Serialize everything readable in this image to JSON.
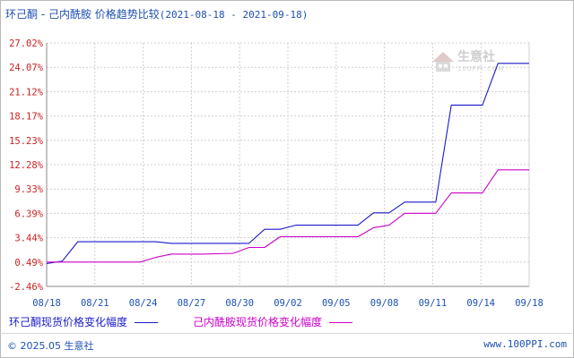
{
  "title": {
    "main": "环己酮 - 己内酰胺 价格趋势比较",
    "date_range": "(2021-08-18 - 2021-09-18)"
  },
  "watermark": {
    "brand": "生意社",
    "sub": "100PPI.COM"
  },
  "legend": [
    {
      "label": "环己酮现货价格变化幅度",
      "color": "#1a1acc"
    },
    {
      "label": "己内酰胺现货价格变化幅度",
      "color": "#cc00cc"
    }
  ],
  "footer": {
    "left": "© 2025.05 生意社",
    "right": "www.100PPI.com"
  },
  "chart_data": {
    "type": "line",
    "title": "环己酮 - 己内酰胺 价格趋势比较",
    "x_labels": [
      "08/18",
      "08/21",
      "08/24",
      "08/27",
      "08/30",
      "09/02",
      "09/05",
      "09/08",
      "09/11",
      "09/14",
      "09/18"
    ],
    "y_ticks": [
      "-2.46%",
      "0.49%",
      "3.44%",
      "6.39%",
      "9.33%",
      "12.28%",
      "15.23%",
      "18.17%",
      "21.12%",
      "24.07%",
      "27.02%"
    ],
    "ylim": [
      -2.46,
      27.02
    ],
    "xlim": [
      0,
      31
    ],
    "grid": true,
    "legend_position": "bottom",
    "series": [
      {
        "name": "环己酮现货价格变化幅度",
        "color": "#1a1acc",
        "x": [
          0,
          1,
          2,
          3,
          7,
          8,
          13,
          14,
          15,
          16,
          17,
          20,
          21,
          22,
          23,
          24,
          25,
          26,
          27,
          28,
          29,
          30,
          31
        ],
        "y": [
          0.3,
          0.6,
          2.95,
          2.95,
          2.95,
          2.75,
          2.75,
          4.45,
          4.45,
          4.95,
          4.95,
          4.95,
          6.45,
          6.45,
          7.75,
          7.75,
          7.75,
          19.5,
          19.5,
          19.5,
          24.55,
          24.55,
          24.55
        ]
      },
      {
        "name": "己内酰胺现货价格变化幅度",
        "color": "#cc00cc",
        "x": [
          0,
          6,
          7,
          8,
          9,
          10,
          12,
          13,
          14,
          15,
          16,
          20,
          21,
          22,
          23,
          24,
          25,
          26,
          27,
          28,
          29,
          30,
          31
        ],
        "y": [
          0.49,
          0.49,
          1.05,
          1.45,
          1.45,
          1.45,
          1.55,
          2.25,
          2.25,
          3.55,
          3.55,
          3.55,
          4.65,
          4.95,
          6.39,
          6.39,
          6.39,
          8.85,
          8.85,
          8.85,
          11.65,
          11.65,
          11.65
        ]
      }
    ]
  }
}
